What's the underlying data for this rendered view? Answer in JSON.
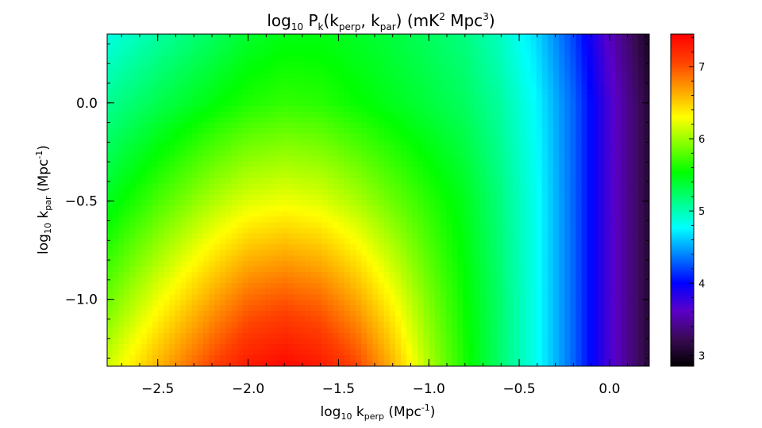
{
  "chart_data": {
    "type": "heatmap",
    "title": {
      "pre": "log",
      "pre_sub": "10",
      "p": " P",
      "p_sub": "k",
      "args_open": "(k",
      "arg1_sub": "perp",
      "args_mid": ", k",
      "arg2_sub": "par",
      "args_close": ")",
      "units_open": "  (mK",
      "units_sup1": "2",
      "units_mid": " Mpc",
      "units_sup2": "3",
      "units_close": ")"
    },
    "xlabel": {
      "pre": "log",
      "pre_sub": "10",
      "k": " k",
      "k_sub": "perp",
      "unit_open": " (Mpc",
      "unit_sup": "-1",
      "unit_close": ")"
    },
    "ylabel": {
      "pre": "log",
      "pre_sub": "10",
      "k": " k",
      "k_sub": "par",
      "unit_open": " (Mpc",
      "unit_sup": "-1",
      "unit_close": ")"
    },
    "xlim": [
      -2.78,
      0.22
    ],
    "ylim": [
      -1.34,
      0.35
    ],
    "xticks": [
      {
        "v": -2.5,
        "label": "−2.5"
      },
      {
        "v": -2.0,
        "label": "−2.0"
      },
      {
        "v": -1.5,
        "label": "−1.5"
      },
      {
        "v": -1.0,
        "label": "−1.0"
      },
      {
        "v": -0.5,
        "label": "−0.5"
      },
      {
        "v": 0.0,
        "label": "0.0"
      }
    ],
    "yticks": [
      {
        "v": -1.0,
        "label": "−1.0"
      },
      {
        "v": -0.5,
        "label": "−0.5"
      },
      {
        "v": 0.0,
        "label": "0.0"
      }
    ],
    "colorbar": {
      "range": [
        2.85,
        7.45
      ],
      "ticks": [
        {
          "v": 3,
          "label": "3"
        },
        {
          "v": 4,
          "label": "4"
        },
        {
          "v": 5,
          "label": "5"
        },
        {
          "v": 6,
          "label": "6"
        },
        {
          "v": 7,
          "label": "7"
        }
      ],
      "colormap": [
        "#000000",
        "#3a0a55",
        "#5a00c8",
        "#0000ff",
        "#0080ff",
        "#00ffff",
        "#00ff80",
        "#00ff00",
        "#80ff00",
        "#ffff00",
        "#ffa000",
        "#ff4000",
        "#ff0000"
      ]
    },
    "grid": false,
    "field_samples": {
      "x": [
        -2.78,
        -2.5,
        -2.2,
        -2.0,
        -1.8,
        -1.6,
        -1.4,
        -1.2,
        -1.0,
        -0.8,
        -0.6,
        -0.4,
        -0.2,
        0.0,
        0.22
      ],
      "y": [
        -1.34,
        -1.0,
        -0.5,
        0.0,
        0.35
      ],
      "z": [
        [
          6.15,
          6.6,
          7.05,
          7.3,
          7.4,
          7.3,
          7.05,
          6.6,
          6.05,
          5.6,
          5.2,
          4.8,
          4.3,
          3.7,
          3.1
        ],
        [
          5.85,
          6.25,
          6.65,
          6.9,
          6.98,
          6.9,
          6.65,
          6.3,
          5.9,
          5.55,
          5.2,
          4.8,
          4.3,
          3.7,
          3.1
        ],
        [
          5.45,
          5.75,
          6.05,
          6.2,
          6.25,
          6.2,
          6.05,
          5.85,
          5.65,
          5.45,
          5.15,
          4.8,
          4.3,
          3.7,
          3.1
        ],
        [
          5.1,
          5.3,
          5.5,
          5.62,
          5.68,
          5.65,
          5.55,
          5.45,
          5.35,
          5.25,
          5.05,
          4.75,
          4.3,
          3.7,
          3.1
        ],
        [
          4.85,
          5.05,
          5.25,
          5.4,
          5.48,
          5.48,
          5.42,
          5.35,
          5.25,
          5.15,
          4.95,
          4.65,
          4.2,
          3.6,
          3.0
        ]
      ]
    }
  }
}
